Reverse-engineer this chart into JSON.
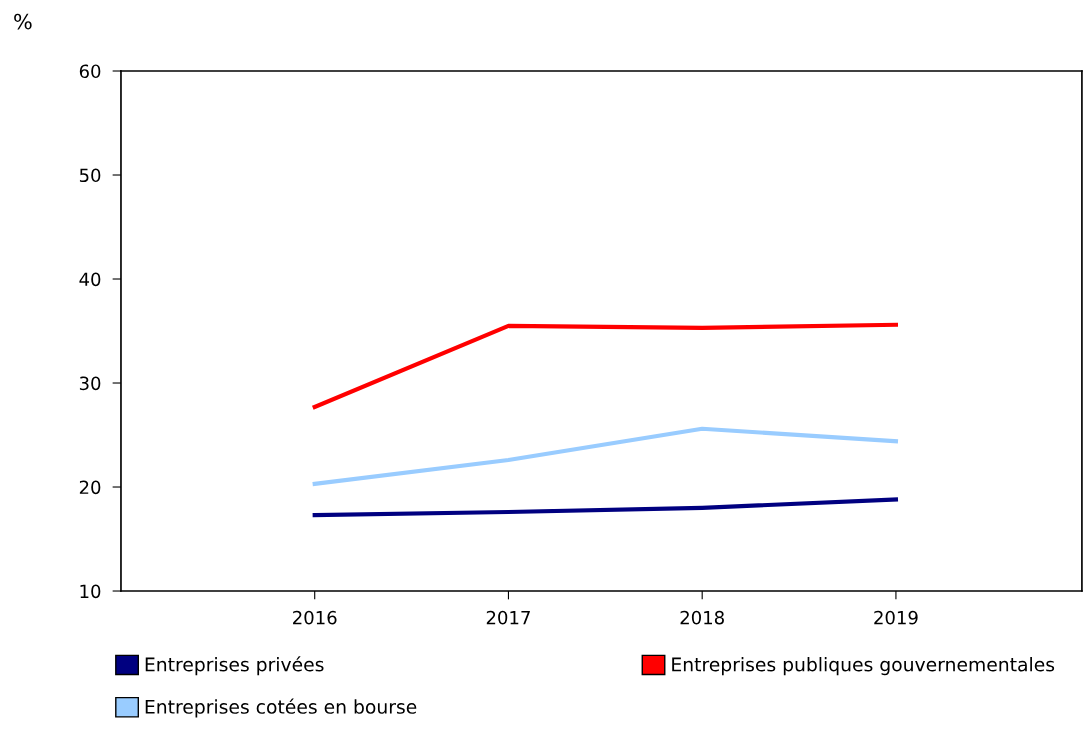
{
  "chart_data": {
    "type": "line",
    "ylabel": "%",
    "categories": [
      "2016",
      "2017",
      "2018",
      "2019"
    ],
    "series": [
      {
        "name": "Entreprises privées",
        "color": "#000080",
        "values": [
          17.3,
          17.6,
          18.0,
          18.8
        ]
      },
      {
        "name": "Entreprises cotées en bourse",
        "color": "#99ccff",
        "values": [
          20.3,
          22.6,
          25.6,
          24.4
        ]
      },
      {
        "name": "Entreprises publiques gouvernementales",
        "color": "#ff0000",
        "values": [
          27.7,
          35.5,
          35.3,
          35.6
        ]
      }
    ],
    "ylim": [
      10,
      60
    ],
    "yticks": [
      10,
      20,
      30,
      40,
      50,
      60
    ],
    "grid": false,
    "legend": "bottom",
    "marker": "none",
    "line_style": "solid"
  }
}
